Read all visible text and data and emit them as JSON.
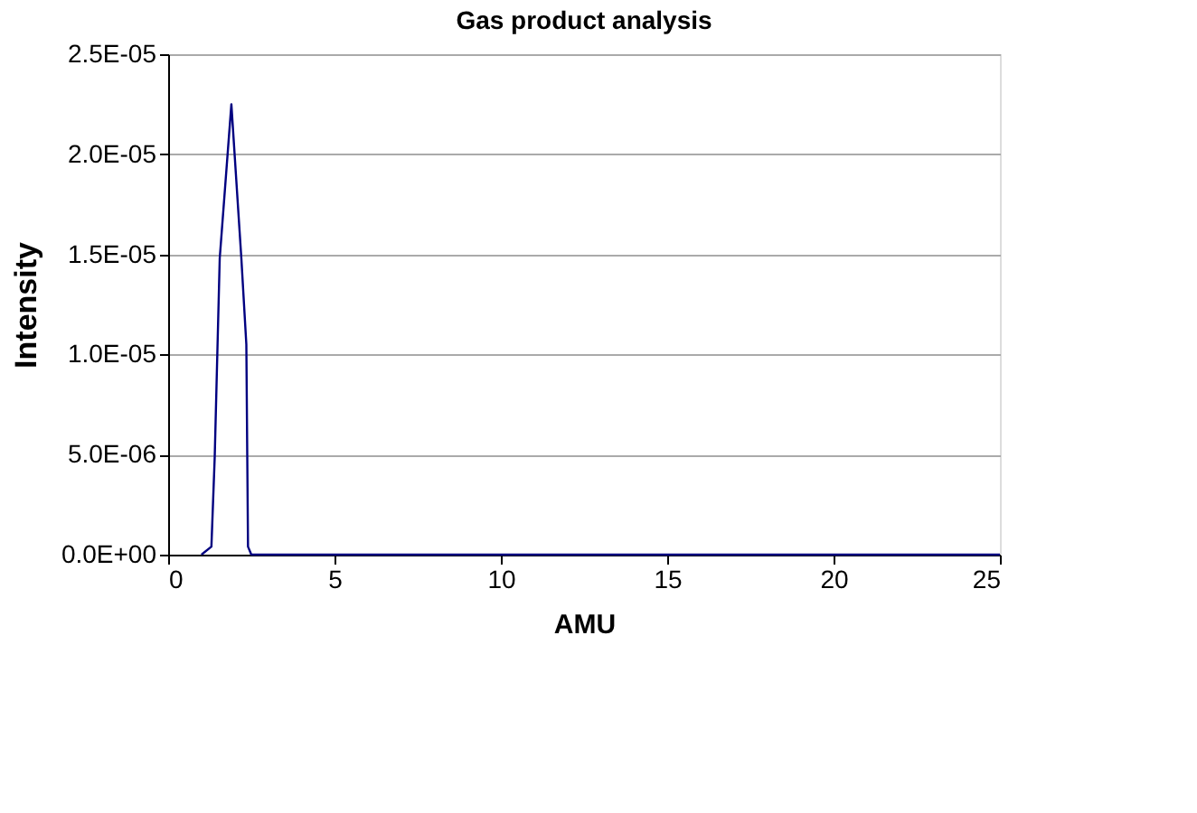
{
  "chart_data": {
    "type": "line",
    "title": "Gas product analysis",
    "xlabel": "AMU",
    "ylabel": "Intensity",
    "series": [
      {
        "color": "#000080",
        "x": [
          1.0,
          1.3,
          1.4,
          1.55,
          1.9,
          2.2,
          2.35,
          2.4,
          2.5,
          25
        ],
        "values": [
          0,
          4e-07,
          4.9e-06,
          1.48e-05,
          2.25e-05,
          1.48e-05,
          1.05e-05,
          4e-07,
          0,
          0
        ]
      }
    ],
    "xlim": [
      0,
      25
    ],
    "xticks": [
      0,
      5,
      10,
      15,
      20,
      25
    ],
    "ylim": [
      0,
      2.5e-05
    ],
    "yticks": [
      {
        "value": 0,
        "label": "0.0E+00"
      },
      {
        "value": 5e-06,
        "label": "5.0E-06"
      },
      {
        "value": 1e-05,
        "label": "1.0E-05"
      },
      {
        "value": 1.5e-05,
        "label": "1.5E-05"
      },
      {
        "value": 2e-05,
        "label": "2.0E-05"
      },
      {
        "value": 2.5e-05,
        "label": "2.5E-05"
      }
    ],
    "grid": "y",
    "legend": false,
    "marker": "none",
    "line_style": "solid"
  }
}
